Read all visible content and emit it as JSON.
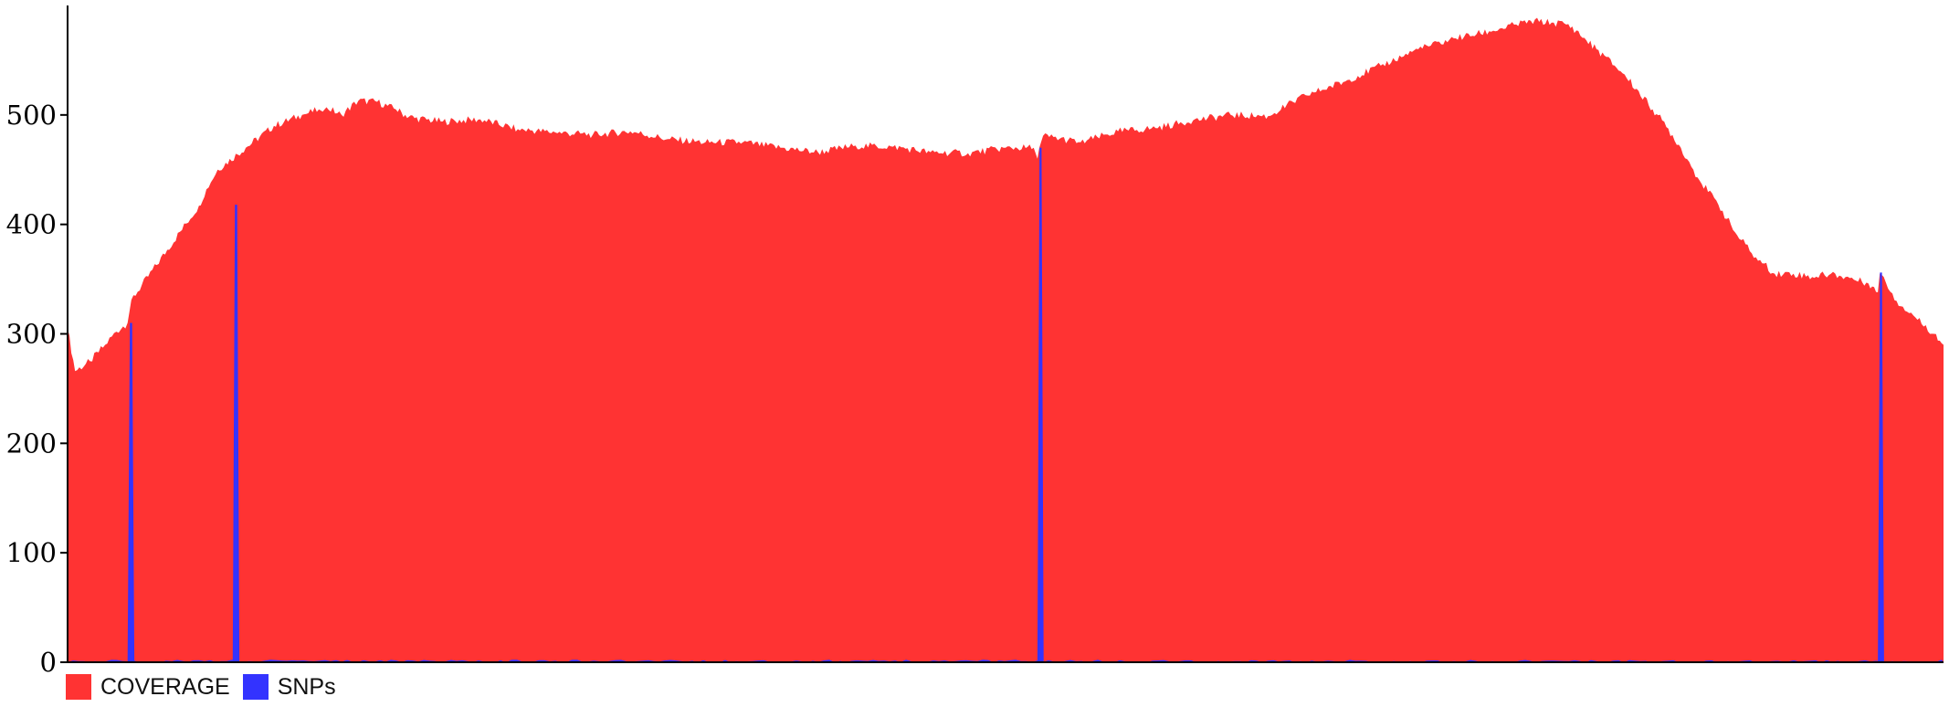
{
  "chart_data": {
    "type": "area",
    "title": "",
    "xlabel": "",
    "ylabel": "",
    "ylim": [
      0,
      600
    ],
    "yticks": [
      0,
      100,
      200,
      300,
      400,
      500
    ],
    "ytick_labels": [
      "0",
      "100",
      "200",
      "300",
      "400",
      "500"
    ],
    "xlim": [
      0,
      1000
    ],
    "grid": false,
    "legend": "bottom-left",
    "series": [
      {
        "name": "COVERAGE",
        "color": "#ff3333",
        "x": [
          0,
          4,
          12,
          20,
          26,
          32,
          34,
          70,
          74,
          80,
          95,
          110,
          125,
          134,
          136,
          138,
          146,
          155,
          165,
          175,
          180,
          185,
          200,
          220,
          240,
          260,
          280,
          300,
          320,
          340,
          360,
          380,
          400,
          420,
          440,
          460,
          480,
          500,
          515,
          517,
          518,
          520,
          540,
          560,
          580,
          600,
          620,
          640,
          660,
          680,
          700,
          720,
          740,
          760,
          780,
          800,
          815,
          830,
          845,
          850,
          860,
          870,
          880,
          890,
          900,
          910,
          920,
          930,
          940,
          950,
          960,
          965,
          966,
          967,
          975,
          985,
          995,
          1000
        ],
        "values": [
          305,
          266,
          275,
          290,
          302,
          310,
          331,
          417,
          432,
          450,
          470,
          490,
          500,
          505,
          503,
          507,
          500,
          513,
          512,
          505,
          500,
          497,
          494,
          496,
          487,
          484,
          482,
          485,
          478,
          475,
          475,
          470,
          466,
          472,
          471,
          466,
          465,
          470,
          470,
          460,
          470,
          481,
          475,
          485,
          488,
          495,
          500,
          499,
          518,
          530,
          545,
          560,
          570,
          577,
          586,
          583,
          560,
          537,
          505,
          495,
          470,
          440,
          418,
          390,
          370,
          355,
          355,
          352,
          355,
          351,
          346,
          338,
          355,
          354,
          330,
          315,
          300,
          290
        ]
      },
      {
        "name": "SNPs",
        "color": "#3333ff",
        "x": [
          0,
          32,
          33.2,
          34.4,
          35.6,
          88,
          89.2,
          90.4,
          91.6,
          517,
          518.1,
          519.2,
          520.3,
          965,
          966.1,
          967.2,
          968.3,
          1000
        ],
        "values": [
          0,
          0,
          310,
          310,
          0,
          0,
          418,
          418,
          0,
          0,
          470,
          470,
          0,
          0,
          356,
          356,
          0,
          0
        ]
      }
    ]
  }
}
